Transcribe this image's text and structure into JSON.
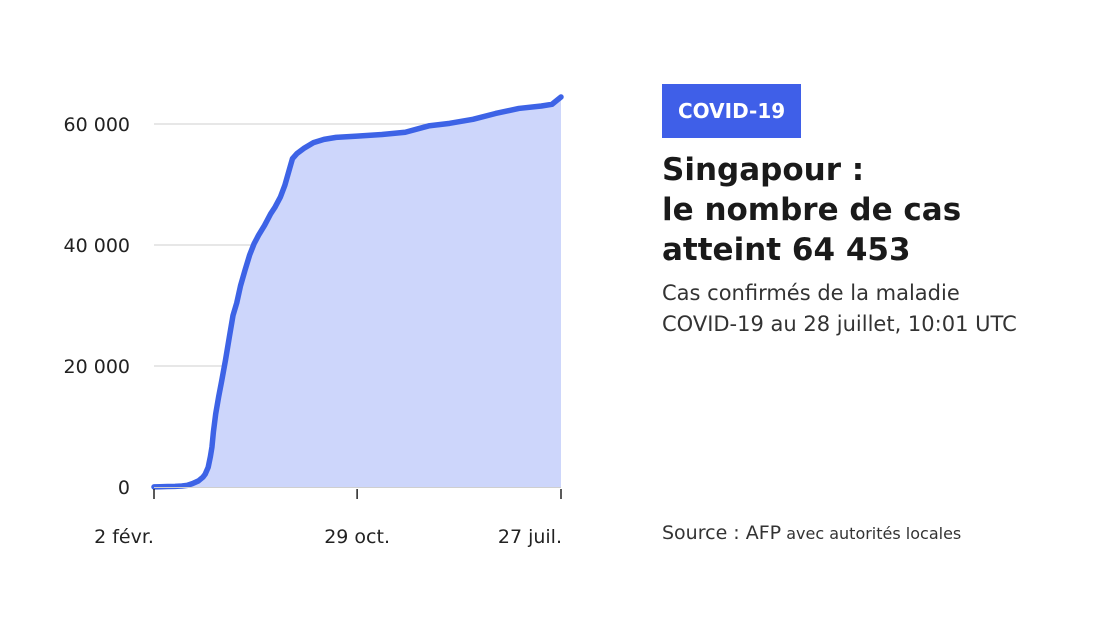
{
  "theme": {
    "accent": "#3f5fe8",
    "line_color": "#3d63e6",
    "area_color": "#cdd6fb",
    "grid_color": "#cfcfcf",
    "axis_color": "#222222"
  },
  "badge": {
    "label": "COVID-19"
  },
  "title": {
    "line1": "Singapour :",
    "line2": "le nombre de cas",
    "line3": "atteint 64 453"
  },
  "subtitle": {
    "line1": "Cas confirmés de la maladie",
    "line2": "COVID-19 au 28 juillet, 10:01 UTC"
  },
  "source": {
    "main": "Source : AFP",
    "detail": "avec autorités locales"
  },
  "chart_data": {
    "type": "area",
    "x_label_format": "day-month",
    "ylim": [
      0,
      64453
    ],
    "grid": true,
    "legend": "none",
    "y_ticks": [
      {
        "value": 0,
        "label": "0"
      },
      {
        "value": 20000,
        "label": "20 000"
      },
      {
        "value": 40000,
        "label": "40 000"
      },
      {
        "value": 60000,
        "label": "60 000"
      }
    ],
    "x_ticks": [
      {
        "date": "2020-02-02",
        "label": "2 févr."
      },
      {
        "date": "2020-10-29",
        "label": "29 oct."
      },
      {
        "date": "2021-07-27",
        "label": "27 juil."
      }
    ],
    "series": [
      {
        "points": [
          [
            "2020-02-02",
            18
          ],
          [
            "2020-02-10",
            45
          ],
          [
            "2020-02-20",
            85
          ],
          [
            "2020-03-01",
            106
          ],
          [
            "2020-03-10",
            160
          ],
          [
            "2020-03-17",
            266
          ],
          [
            "2020-03-24",
            558
          ],
          [
            "2020-04-01",
            1000
          ],
          [
            "2020-04-07",
            1623
          ],
          [
            "2020-04-10",
            2108
          ],
          [
            "2020-04-14",
            3252
          ],
          [
            "2020-04-17",
            5050
          ],
          [
            "2020-04-19",
            6588
          ],
          [
            "2020-04-21",
            9125
          ],
          [
            "2020-04-24",
            12075
          ],
          [
            "2020-04-28",
            14951
          ],
          [
            "2020-05-02",
            17548
          ],
          [
            "2020-05-07",
            20939
          ],
          [
            "2020-05-12",
            24671
          ],
          [
            "2020-05-17",
            28343
          ],
          [
            "2020-05-22",
            30426
          ],
          [
            "2020-05-27",
            33249
          ],
          [
            "2020-06-02",
            35836
          ],
          [
            "2020-06-08",
            38296
          ],
          [
            "2020-06-14",
            40197
          ],
          [
            "2020-06-20",
            41615
          ],
          [
            "2020-06-28",
            43246
          ],
          [
            "2020-07-06",
            45140
          ],
          [
            "2020-07-12",
            46283
          ],
          [
            "2020-07-19",
            47912
          ],
          [
            "2020-07-25",
            49888
          ],
          [
            "2020-07-31",
            52512
          ],
          [
            "2020-08-04",
            54254
          ],
          [
            "2020-08-10",
            55104
          ],
          [
            "2020-08-20",
            56031
          ],
          [
            "2020-09-01",
            56908
          ],
          [
            "2020-09-15",
            57454
          ],
          [
            "2020-10-01",
            57784
          ],
          [
            "2020-10-29",
            57980
          ],
          [
            "2020-12-01",
            58255
          ],
          [
            "2021-01-01",
            58629
          ],
          [
            "2021-02-01",
            59675
          ],
          [
            "2021-03-01",
            60098
          ],
          [
            "2021-04-01",
            60769
          ],
          [
            "2021-05-01",
            61730
          ],
          [
            "2021-06-01",
            62563
          ],
          [
            "2021-07-01",
            62968
          ],
          [
            "2021-07-15",
            63245
          ],
          [
            "2021-07-27",
            64453
          ]
        ]
      }
    ]
  }
}
